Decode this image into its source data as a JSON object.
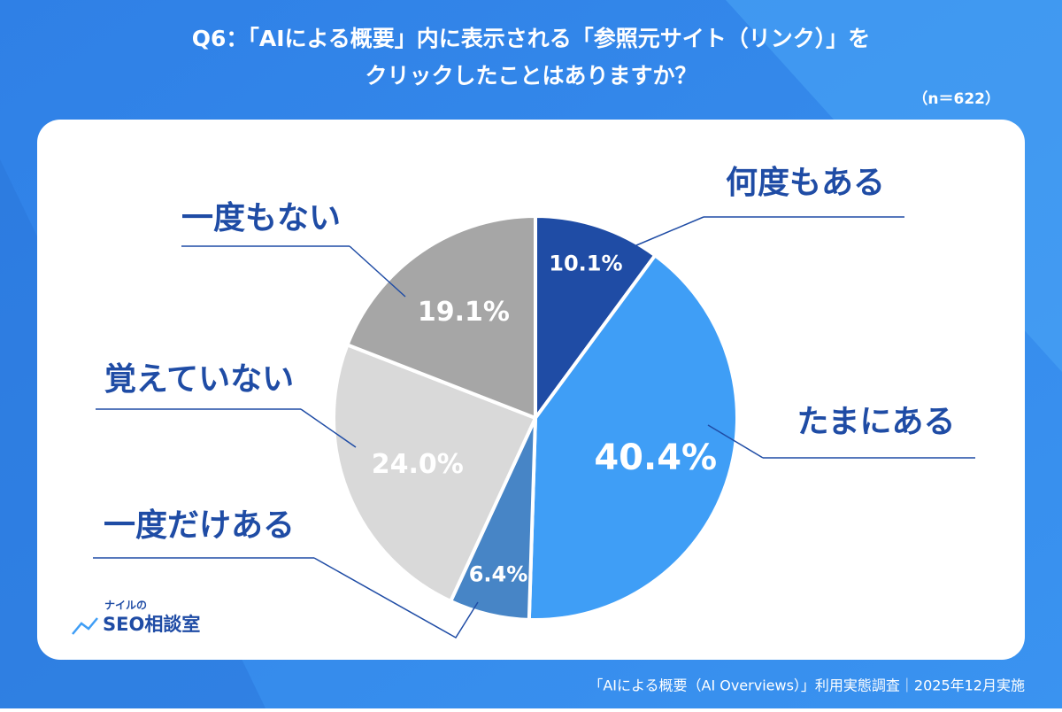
{
  "chart_data": {
    "type": "pie",
    "title": [
      "Q6：「AIによる概要」内に表示される「参照元サイト（リンク）」を",
      "クリックしたことはありますか？"
    ],
    "subtitle": "（n＝622）",
    "categories": [
      "何度もある",
      "たまにある",
      "一度だけある",
      "覚えていない",
      "一度もない"
    ],
    "values": [
      10.1,
      40.4,
      6.4,
      24.0,
      19.1
    ],
    "value_labels": [
      "10.1%",
      "40.4%",
      "6.4%",
      "24.0%",
      "19.1%"
    ],
    "colors": [
      "#1f4ca5",
      "#3f9ef6",
      "#4785c6",
      "#d9d9d9",
      "#a6a6a6"
    ],
    "source": "「AIによる概要（AI Overviews）」利用実態調査｜2025年12月実施",
    "logo": [
      "ナイルの",
      "SEO相談室"
    ]
  }
}
